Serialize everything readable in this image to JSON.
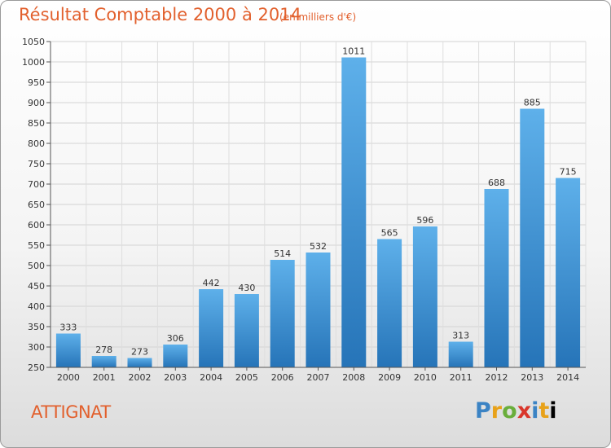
{
  "title": "Résultat Comptable 2000 à 2014",
  "subtitle": "(en milliers d'€)",
  "commune": "ATTIGNAT",
  "logo": [
    "P",
    "r",
    "o",
    "x",
    "i",
    "t",
    "i"
  ],
  "colors": {
    "bar": "#3d8fd6",
    "title": "#e2602d"
  },
  "chart_data": {
    "type": "bar",
    "title": "Résultat Comptable 2000 à 2014",
    "subtitle": "(en milliers d'€)",
    "xlabel": "",
    "ylabel": "",
    "categories": [
      "2000",
      "2001",
      "2002",
      "2003",
      "2004",
      "2005",
      "2006",
      "2007",
      "2008",
      "2009",
      "2010",
      "2011",
      "2012",
      "2013",
      "2014"
    ],
    "values": [
      333,
      278,
      273,
      306,
      442,
      430,
      514,
      532,
      1011,
      565,
      596,
      313,
      688,
      885,
      715
    ],
    "ylim": [
      250,
      1050
    ],
    "yticks": [
      250,
      300,
      350,
      400,
      450,
      500,
      550,
      600,
      650,
      700,
      750,
      800,
      850,
      900,
      950,
      1000,
      1050
    ],
    "grid": true
  }
}
